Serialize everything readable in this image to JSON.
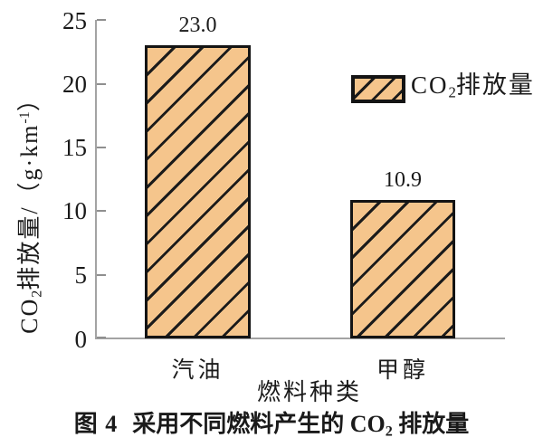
{
  "chart_data": {
    "type": "bar",
    "title": "",
    "categories": [
      "汽油",
      "甲醇"
    ],
    "values": [
      23.0,
      10.9
    ],
    "value_labels": [
      "23.0",
      "10.9"
    ],
    "series": [
      {
        "name": "CO₂排放量",
        "values": [
          23.0,
          10.9
        ]
      }
    ],
    "xlabel": "燃料种类",
    "ylabel": "CO₂排放量/（g·km⁻¹）",
    "ylim": [
      0,
      25
    ],
    "yticks": [
      25,
      20,
      15,
      10,
      5,
      0
    ],
    "ytick_labels": [
      "25",
      "20",
      "15",
      "10",
      "5",
      "0"
    ],
    "grid": false,
    "legend_position": "upper right",
    "legend_label": "CO₂排放量",
    "hatch": "/",
    "bar_fill_color": "#F5C58C",
    "hatch_color": "#1b1b1b",
    "axis_color": "#a3a3a3",
    "caption": "图 4 采用不同燃料产生的 CO₂ 排放量"
  },
  "ylabel_parts": {
    "prefix": "CO",
    "sub": "2",
    "mid": "排放量/（g·km",
    "sup": "-1",
    "close": "）"
  },
  "legend_parts": {
    "prefix": "CO",
    "sub": "2",
    "suffix": "排放量"
  },
  "caption_parts": {
    "fig_label": "图 4",
    "text": "采用不同燃料产生的 CO",
    "sub": "2",
    "suffix": " 排放量"
  }
}
